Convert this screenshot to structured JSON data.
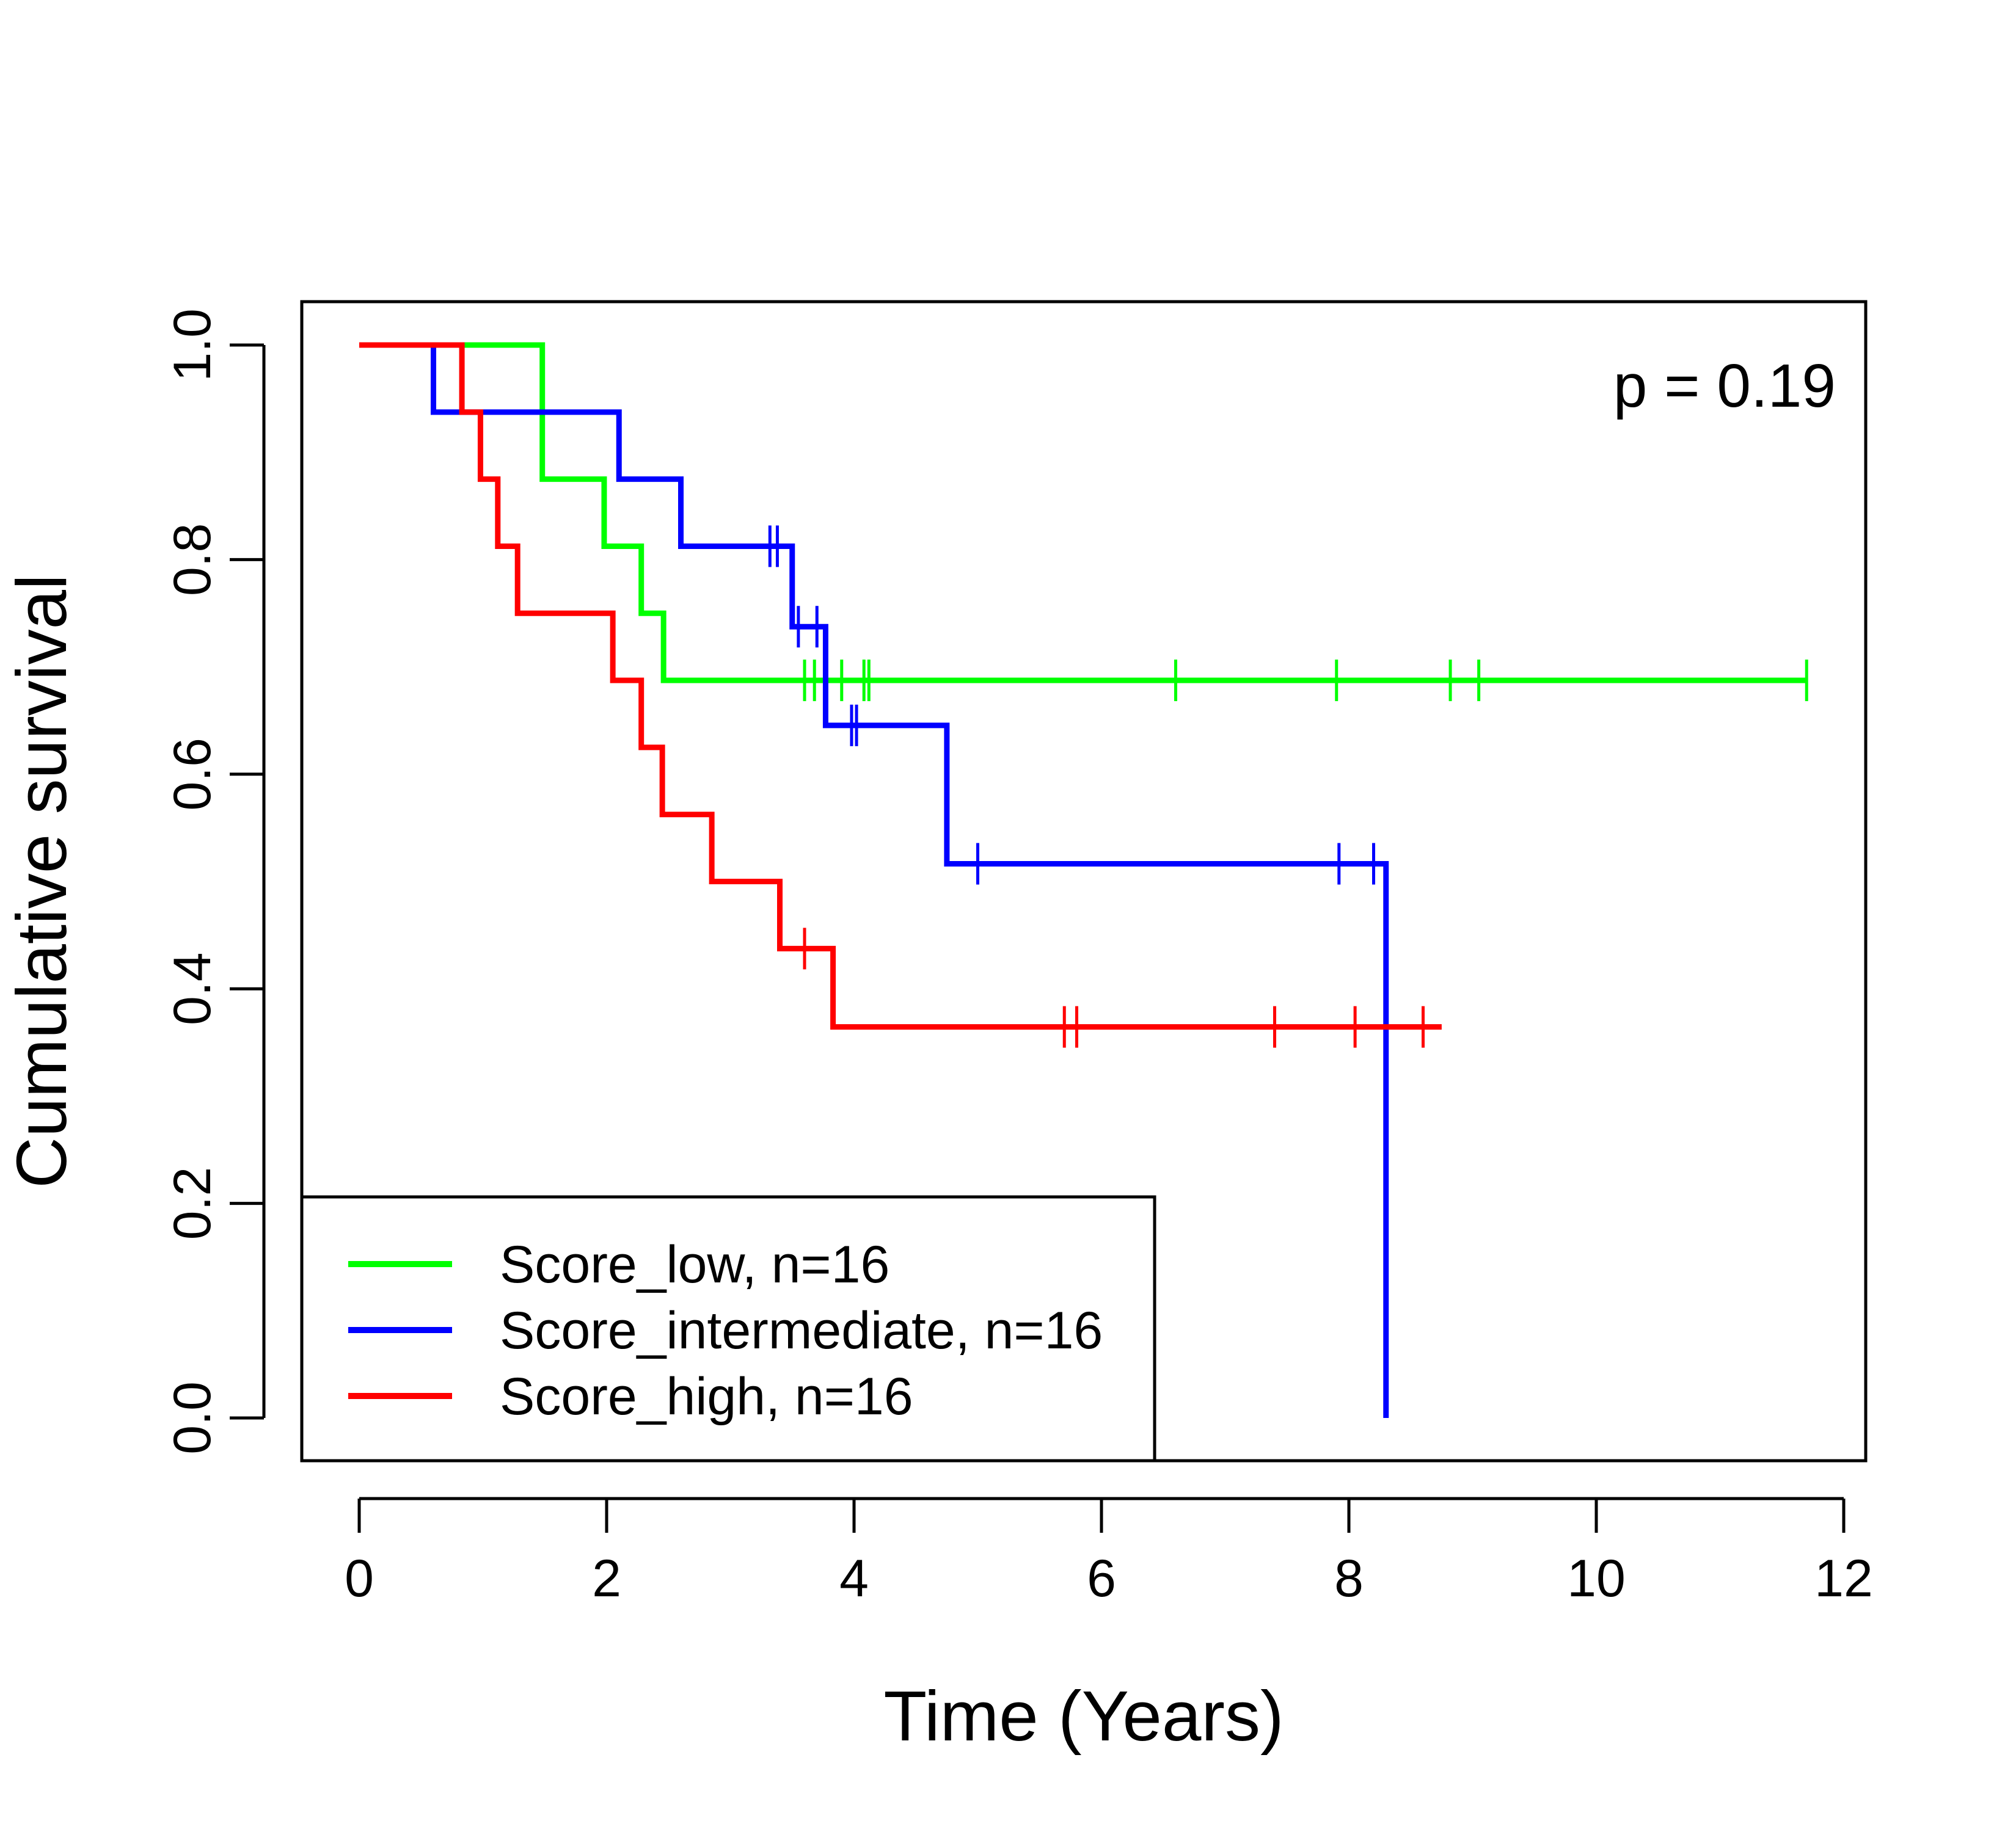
{
  "chart_data": {
    "type": "line",
    "subtype": "kaplan-meier step",
    "xlabel": "Time (Years)",
    "ylabel": "Cumulative survival",
    "xlim": [
      0,
      12
    ],
    "ylim": [
      0,
      1
    ],
    "xticks": [
      0,
      2,
      4,
      6,
      8,
      10,
      12
    ],
    "xtick_labels": [
      "0",
      "2",
      "4",
      "6",
      "8",
      "10",
      "12"
    ],
    "yticks": [
      0,
      0.2,
      0.4,
      0.6,
      0.8,
      1.0
    ],
    "ytick_labels": [
      "0.0",
      "0.2",
      "0.4",
      "0.6",
      "0.8",
      "1.0"
    ],
    "grid": false,
    "legend_position": "bottom-left",
    "annotation": "p = 0.19",
    "series": [
      {
        "name": "Score_low, n=16",
        "color": "#00ff00",
        "steps": [
          [
            0,
            1.0
          ],
          [
            1.48,
            0.875
          ],
          [
            1.98,
            0.8125
          ],
          [
            2.28,
            0.75
          ],
          [
            2.46,
            0.6875
          ]
        ],
        "end_x": 11.7,
        "censor_x": [
          3.6,
          3.68,
          3.9,
          4.08,
          4.12,
          6.6,
          7.9,
          8.82,
          9.05,
          11.7
        ]
      },
      {
        "name": "Score_intermediate, n=16",
        "color": "#0000ff",
        "steps": [
          [
            0.6,
            1.0
          ],
          [
            0.6,
            0.9375
          ],
          [
            2.1,
            0.875
          ],
          [
            2.6,
            0.8125
          ],
          [
            3.5,
            0.7375
          ],
          [
            3.77,
            0.6455
          ],
          [
            4.75,
            0.5165
          ],
          [
            8.3,
            0.0
          ]
        ],
        "end_x": 8.35,
        "censor_x": [
          3.32,
          3.38,
          3.55,
          3.7,
          3.98,
          4.02,
          5.0,
          7.92,
          8.2
        ]
      },
      {
        "name": "Score_high, n=16",
        "color": "#ff0000",
        "steps": [
          [
            0,
            1.0
          ],
          [
            0.83,
            0.9375
          ],
          [
            0.98,
            0.875
          ],
          [
            1.12,
            0.8125
          ],
          [
            1.28,
            0.75
          ],
          [
            2.05,
            0.6875
          ],
          [
            2.28,
            0.625
          ],
          [
            2.45,
            0.5625
          ],
          [
            2.85,
            0.5
          ],
          [
            3.4,
            0.4375
          ],
          [
            3.83,
            0.3645
          ]
        ],
        "end_x": 8.75,
        "censor_x": [
          3.6,
          5.7,
          5.8,
          7.4,
          8.05,
          8.6
        ]
      }
    ]
  }
}
